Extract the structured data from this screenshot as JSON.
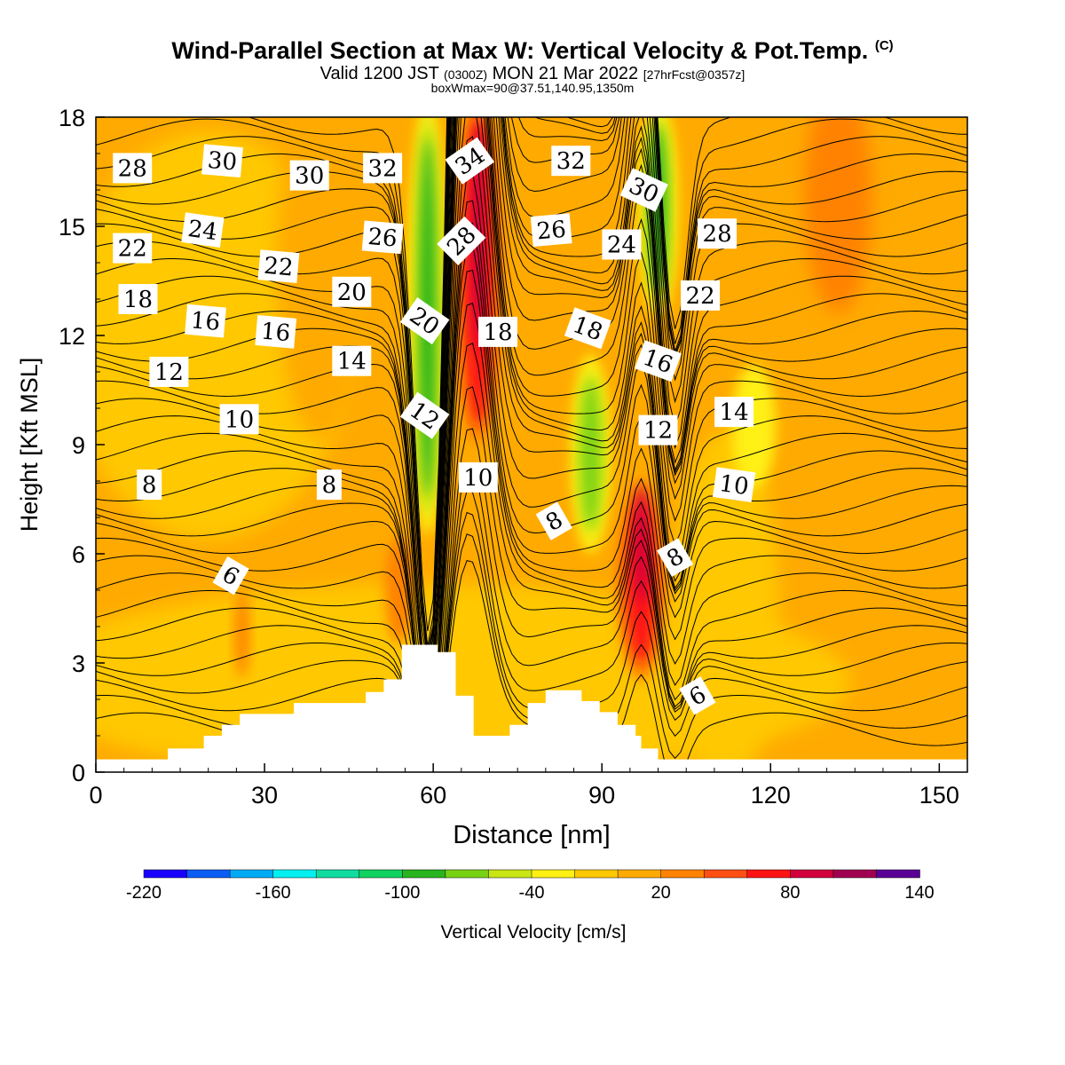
{
  "header": {
    "title": "Wind-Parallel Section at Max W: Vertical Velocity & Pot.Temp.",
    "title_mark": "(C)",
    "valid_prefix": "Valid 1200 JST",
    "valid_utc": "(0300Z)",
    "valid_date": "MON 21 Mar 2022",
    "forecast": "[27hrFcst@0357z]",
    "boxmax": "boxWmax=90@37.51,140.95,1350m"
  },
  "chart_data": {
    "type": "heatmap",
    "xlabel": "Distance [nm]",
    "ylabel": "Height [Kft MSL]",
    "xlim": [
      0,
      155
    ],
    "ylim": [
      0,
      18
    ],
    "x_ticks": [
      0,
      30,
      60,
      90,
      120,
      150
    ],
    "y_ticks": [
      0,
      3,
      6,
      9,
      12,
      15,
      18
    ],
    "colorbar": {
      "label": "Vertical Velocity [cm/s]",
      "tick_labels": [
        -220,
        -160,
        -100,
        -40,
        20,
        80,
        140
      ],
      "colors": [
        "#1a00ff",
        "#0a5cf5",
        "#00aaf5",
        "#00f0f0",
        "#10dca0",
        "#10d260",
        "#28b41e",
        "#78d214",
        "#c8e614",
        "#fff014",
        "#ffc800",
        "#ffaa00",
        "#ff8200",
        "#ff5014",
        "#ff1414",
        "#d2003c",
        "#a00050",
        "#5a0096"
      ]
    },
    "updrafts": [
      {
        "x": 68,
        "from": 9.5,
        "to": 18,
        "peak_cm_s": 80
      },
      {
        "x": 97,
        "from": 3,
        "to": 7.5,
        "peak_cm_s": 80
      }
    ],
    "downdrafts": [
      {
        "x": 59,
        "from": 7,
        "to": 18,
        "min_cm_s": -80
      },
      {
        "x": 100,
        "from": 13,
        "to": 18,
        "min_cm_s": -80
      },
      {
        "x": 88,
        "from": 6.5,
        "to": 11,
        "min_cm_s": -60
      }
    ],
    "theta_contour_labels": [
      {
        "text": "28",
        "x": 6.5,
        "y": 16.6,
        "rot": 0
      },
      {
        "text": "30",
        "x": 22.5,
        "y": 16.8,
        "rot": 5
      },
      {
        "text": "30",
        "x": 38,
        "y": 16.4,
        "rot": 0
      },
      {
        "text": "32",
        "x": 51,
        "y": 16.6,
        "rot": 0
      },
      {
        "text": "34",
        "x": 66.5,
        "y": 16.8,
        "rot": -35
      },
      {
        "text": "32",
        "x": 84.5,
        "y": 16.8,
        "rot": 0
      },
      {
        "text": "30",
        "x": 97.5,
        "y": 16.0,
        "rot": 25
      },
      {
        "text": "22",
        "x": 6.5,
        "y": 14.4,
        "rot": 0
      },
      {
        "text": "24",
        "x": 19,
        "y": 14.9,
        "rot": 8
      },
      {
        "text": "22",
        "x": 32.5,
        "y": 13.9,
        "rot": 5
      },
      {
        "text": "26",
        "x": 51,
        "y": 14.7,
        "rot": 5
      },
      {
        "text": "28",
        "x": 65,
        "y": 14.6,
        "rot": -45
      },
      {
        "text": "26",
        "x": 81,
        "y": 14.9,
        "rot": -5
      },
      {
        "text": "24",
        "x": 93.5,
        "y": 14.5,
        "rot": 0
      },
      {
        "text": "28",
        "x": 110.5,
        "y": 14.8,
        "rot": 0
      },
      {
        "text": "18",
        "x": 7.5,
        "y": 13.0,
        "rot": 0
      },
      {
        "text": "16",
        "x": 19.5,
        "y": 12.4,
        "rot": 5
      },
      {
        "text": "16",
        "x": 32,
        "y": 12.1,
        "rot": 5
      },
      {
        "text": "20",
        "x": 45.5,
        "y": 13.2,
        "rot": 0
      },
      {
        "text": "20",
        "x": 58.5,
        "y": 12.4,
        "rot": 35
      },
      {
        "text": "18",
        "x": 71.5,
        "y": 12.1,
        "rot": 0
      },
      {
        "text": "18",
        "x": 87.5,
        "y": 12.2,
        "rot": 20
      },
      {
        "text": "22",
        "x": 107.5,
        "y": 13.1,
        "rot": 0
      },
      {
        "text": "12",
        "x": 13,
        "y": 11.0,
        "rot": 0
      },
      {
        "text": "14",
        "x": 45.5,
        "y": 11.3,
        "rot": 0
      },
      {
        "text": "16",
        "x": 100,
        "y": 11.3,
        "rot": 20
      },
      {
        "text": "10",
        "x": 25.5,
        "y": 9.7,
        "rot": 0
      },
      {
        "text": "12",
        "x": 58.5,
        "y": 9.8,
        "rot": 35
      },
      {
        "text": "12",
        "x": 100,
        "y": 9.4,
        "rot": 0
      },
      {
        "text": "14",
        "x": 113.5,
        "y": 9.9,
        "rot": 0
      },
      {
        "text": "8",
        "x": 9.5,
        "y": 7.9,
        "rot": 0
      },
      {
        "text": "8",
        "x": 41.5,
        "y": 7.9,
        "rot": 0
      },
      {
        "text": "10",
        "x": 68,
        "y": 8.1,
        "rot": 0
      },
      {
        "text": "10",
        "x": 113.5,
        "y": 7.9,
        "rot": 8
      },
      {
        "text": "8",
        "x": 81.5,
        "y": 6.9,
        "rot": -30
      },
      {
        "text": "8",
        "x": 103,
        "y": 5.9,
        "rot": -30
      },
      {
        "text": "6",
        "x": 24,
        "y": 5.4,
        "rot": 30
      },
      {
        "text": "6",
        "x": 107,
        "y": 2.1,
        "rot": -30
      }
    ]
  }
}
